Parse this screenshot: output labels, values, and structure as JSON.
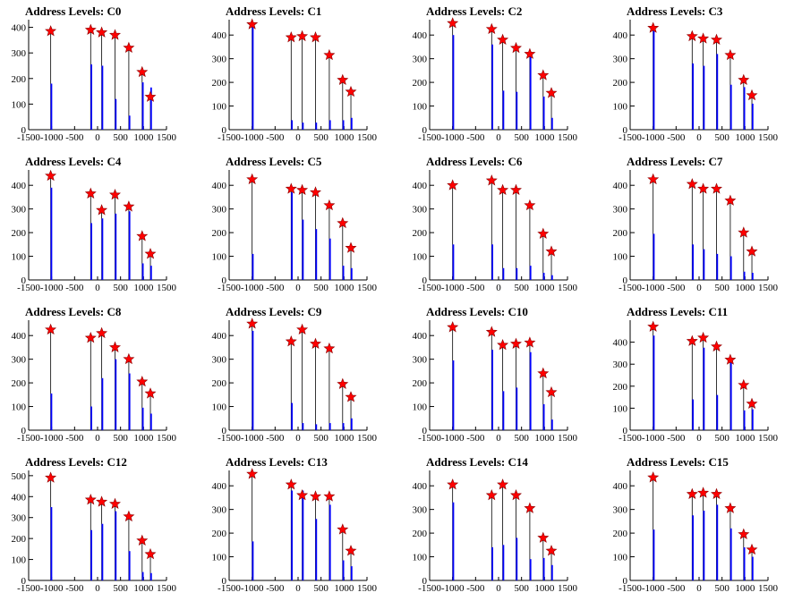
{
  "figure": {
    "background": "#ffffff",
    "colors": {
      "bar": "#0000ff",
      "spike": "#000000",
      "marker_fill": "#ff0000",
      "marker_stroke": "#8b0000",
      "axis": "#000000"
    }
  },
  "chart_data": [
    {
      "type": "bar",
      "title": "Address Levels: C0",
      "xlabel": "",
      "ylabel": "",
      "xlim": [
        -1500,
        1500
      ],
      "ylim": [
        0,
        430
      ],
      "xticks": [
        -1500,
        -1000,
        -500,
        0,
        500,
        1000,
        1500
      ],
      "yticks": [
        0,
        100,
        200,
        300,
        400
      ],
      "peaks": {
        "x": [
          -1020,
          -150,
          90,
          380,
          680,
          970,
          1150
        ],
        "y": [
          385,
          390,
          380,
          370,
          320,
          225,
          128
        ]
      },
      "bars": {
        "x": [
          -1020,
          -150,
          90,
          380,
          680,
          970,
          1150
        ],
        "y": [
          180,
          255,
          250,
          120,
          55,
          185,
          165
        ]
      }
    },
    {
      "type": "bar",
      "title": "Address Levels: C1",
      "xlabel": "",
      "ylabel": "",
      "xlim": [
        -1500,
        1500
      ],
      "ylim": [
        0,
        465
      ],
      "xticks": [
        -1500,
        -1000,
        -500,
        0,
        500,
        1000,
        1500
      ],
      "yticks": [
        0,
        100,
        200,
        300,
        400
      ],
      "peaks": {
        "x": [
          -1000,
          -150,
          90,
          380,
          680,
          970,
          1150
        ],
        "y": [
          445,
          390,
          395,
          390,
          315,
          210,
          160
        ]
      },
      "bars": {
        "x": [
          -1000,
          -150,
          90,
          380,
          680,
          970,
          1150
        ],
        "y": [
          445,
          40,
          30,
          30,
          40,
          40,
          50
        ]
      }
    },
    {
      "type": "bar",
      "title": "Address Levels: C2",
      "xlabel": "",
      "ylabel": "",
      "xlim": [
        -1500,
        1500
      ],
      "ylim": [
        0,
        465
      ],
      "xticks": [
        -1500,
        -1000,
        -500,
        0,
        500,
        1000,
        1500
      ],
      "yticks": [
        0,
        100,
        200,
        300,
        400
      ],
      "peaks": {
        "x": [
          -1000,
          -150,
          90,
          380,
          680,
          970,
          1150
        ],
        "y": [
          450,
          425,
          380,
          345,
          320,
          230,
          155
        ]
      },
      "bars": {
        "x": [
          -1000,
          -150,
          90,
          380,
          680,
          970,
          1150
        ],
        "y": [
          400,
          360,
          165,
          160,
          330,
          140,
          50
        ]
      }
    },
    {
      "type": "bar",
      "title": "Address Levels: C3",
      "xlabel": "",
      "ylabel": "",
      "xlim": [
        -1500,
        1500
      ],
      "ylim": [
        0,
        465
      ],
      "xticks": [
        -1500,
        -1000,
        -500,
        0,
        500,
        1000,
        1500
      ],
      "yticks": [
        0,
        100,
        200,
        300,
        400
      ],
      "peaks": {
        "x": [
          -1000,
          -150,
          90,
          380,
          680,
          970,
          1150
        ],
        "y": [
          430,
          395,
          385,
          380,
          315,
          210,
          145
        ]
      },
      "bars": {
        "x": [
          -1000,
          -150,
          90,
          380,
          680,
          970,
          1150
        ],
        "y": [
          420,
          280,
          270,
          320,
          190,
          180,
          110
        ]
      }
    },
    {
      "type": "bar",
      "title": "Address Levels: C4",
      "xlabel": "",
      "ylabel": "",
      "xlim": [
        -1500,
        1500
      ],
      "ylim": [
        0,
        465
      ],
      "xticks": [
        -1500,
        -1000,
        -500,
        0,
        500,
        1000,
        1500
      ],
      "yticks": [
        0,
        100,
        200,
        300,
        400
      ],
      "peaks": {
        "x": [
          -1020,
          -150,
          90,
          380,
          680,
          970,
          1150
        ],
        "y": [
          440,
          365,
          295,
          360,
          310,
          185,
          110
        ]
      },
      "bars": {
        "x": [
          -1020,
          -150,
          90,
          380,
          680,
          970,
          1150
        ],
        "y": [
          390,
          240,
          260,
          280,
          290,
          70,
          60
        ]
      }
    },
    {
      "type": "bar",
      "title": "Address Levels: C5",
      "xlabel": "",
      "ylabel": "",
      "xlim": [
        -1500,
        1500
      ],
      "ylim": [
        0,
        465
      ],
      "xticks": [
        -1500,
        -1000,
        -500,
        0,
        500,
        1000,
        1500
      ],
      "yticks": [
        0,
        100,
        200,
        300,
        400
      ],
      "peaks": {
        "x": [
          -1000,
          -150,
          90,
          380,
          680,
          970,
          1150
        ],
        "y": [
          425,
          385,
          380,
          370,
          315,
          240,
          135
        ]
      },
      "bars": {
        "x": [
          -1000,
          -150,
          90,
          380,
          680,
          970,
          1150
        ],
        "y": [
          110,
          370,
          255,
          215,
          175,
          60,
          50
        ]
      }
    },
    {
      "type": "bar",
      "title": "Address Levels: C6",
      "xlabel": "",
      "ylabel": "",
      "xlim": [
        -1500,
        1500
      ],
      "ylim": [
        0,
        465
      ],
      "xticks": [
        -1500,
        -1000,
        -500,
        0,
        500,
        1000,
        1500
      ],
      "yticks": [
        0,
        100,
        200,
        300,
        400
      ],
      "peaks": {
        "x": [
          -1000,
          -150,
          90,
          380,
          680,
          970,
          1150
        ],
        "y": [
          400,
          420,
          380,
          380,
          315,
          195,
          120
        ]
      },
      "bars": {
        "x": [
          -1000,
          -150,
          90,
          380,
          680,
          970,
          1150
        ],
        "y": [
          150,
          150,
          50,
          50,
          60,
          30,
          20
        ]
      }
    },
    {
      "type": "bar",
      "title": "Address Levels: C7",
      "xlabel": "",
      "ylabel": "",
      "xlim": [
        -1500,
        1500
      ],
      "ylim": [
        0,
        465
      ],
      "xticks": [
        -1500,
        -1000,
        -500,
        0,
        500,
        1000,
        1500
      ],
      "yticks": [
        0,
        100,
        200,
        300,
        400
      ],
      "peaks": {
        "x": [
          -1000,
          -150,
          90,
          380,
          680,
          970,
          1150
        ],
        "y": [
          425,
          405,
          385,
          385,
          335,
          200,
          120
        ]
      },
      "bars": {
        "x": [
          -1000,
          -150,
          90,
          380,
          680,
          970,
          1150
        ],
        "y": [
          195,
          150,
          130,
          110,
          100,
          35,
          30
        ]
      }
    },
    {
      "type": "bar",
      "title": "Address Levels: C8",
      "xlabel": "",
      "ylabel": "",
      "xlim": [
        -1500,
        1500
      ],
      "ylim": [
        0,
        465
      ],
      "xticks": [
        -1500,
        -1000,
        -500,
        0,
        500,
        1000,
        1500
      ],
      "yticks": [
        0,
        100,
        200,
        300,
        400
      ],
      "peaks": {
        "x": [
          -1020,
          -150,
          90,
          380,
          680,
          970,
          1150
        ],
        "y": [
          425,
          390,
          410,
          350,
          300,
          205,
          155
        ]
      },
      "bars": {
        "x": [
          -1020,
          -150,
          90,
          380,
          680,
          970,
          1150
        ],
        "y": [
          155,
          100,
          220,
          300,
          240,
          95,
          70
        ]
      }
    },
    {
      "type": "bar",
      "title": "Address Levels: C9",
      "xlabel": "",
      "ylabel": "",
      "xlim": [
        -1500,
        1500
      ],
      "ylim": [
        0,
        465
      ],
      "xticks": [
        -1500,
        -1000,
        -500,
        0,
        500,
        1000,
        1500
      ],
      "yticks": [
        0,
        100,
        200,
        300,
        400
      ],
      "peaks": {
        "x": [
          -1000,
          -150,
          90,
          380,
          680,
          970,
          1150
        ],
        "y": [
          450,
          375,
          425,
          365,
          345,
          195,
          140
        ]
      },
      "bars": {
        "x": [
          -1000,
          -150,
          90,
          380,
          680,
          970,
          1150
        ],
        "y": [
          420,
          115,
          30,
          25,
          30,
          30,
          50
        ]
      }
    },
    {
      "type": "bar",
      "title": "Address Levels: C10",
      "xlabel": "",
      "ylabel": "",
      "xlim": [
        -1500,
        1500
      ],
      "ylim": [
        0,
        465
      ],
      "xticks": [
        -1500,
        -1000,
        -500,
        0,
        500,
        1000,
        1500
      ],
      "yticks": [
        0,
        100,
        200,
        300,
        400
      ],
      "peaks": {
        "x": [
          -1000,
          -150,
          90,
          380,
          680,
          970,
          1150
        ],
        "y": [
          435,
          415,
          360,
          365,
          370,
          240,
          160
        ]
      },
      "bars": {
        "x": [
          -1000,
          -150,
          90,
          380,
          680,
          970,
          1150
        ],
        "y": [
          295,
          340,
          165,
          180,
          330,
          110,
          45
        ]
      }
    },
    {
      "type": "bar",
      "title": "Address Levels: C11",
      "xlabel": "",
      "ylabel": "",
      "xlim": [
        -1500,
        1500
      ],
      "ylim": [
        0,
        500
      ],
      "xticks": [
        -1500,
        -1000,
        -500,
        0,
        500,
        1000,
        1500
      ],
      "yticks": [
        0,
        100,
        200,
        300,
        400
      ],
      "peaks": {
        "x": [
          -1000,
          -150,
          90,
          380,
          680,
          970,
          1150
        ],
        "y": [
          470,
          405,
          420,
          380,
          320,
          205,
          120
        ]
      },
      "bars": {
        "x": [
          -1000,
          -150,
          90,
          380,
          680,
          970,
          1150
        ],
        "y": [
          430,
          140,
          375,
          160,
          310,
          90,
          95
        ]
      }
    },
    {
      "type": "bar",
      "title": "Address Levels: C12",
      "xlabel": "",
      "ylabel": "",
      "xlim": [
        -1500,
        1500
      ],
      "ylim": [
        0,
        525
      ],
      "xticks": [
        -1500,
        -1000,
        -500,
        0,
        500,
        1000,
        1500
      ],
      "yticks": [
        0,
        100,
        200,
        300,
        400,
        500
      ],
      "peaks": {
        "x": [
          -1020,
          -150,
          90,
          380,
          680,
          970,
          1150
        ],
        "y": [
          490,
          385,
          375,
          365,
          305,
          190,
          125
        ]
      },
      "bars": {
        "x": [
          -1020,
          -150,
          90,
          380,
          680,
          970,
          1150
        ],
        "y": [
          350,
          240,
          270,
          330,
          140,
          40,
          35
        ]
      }
    },
    {
      "type": "bar",
      "title": "Address Levels: C13",
      "xlabel": "",
      "ylabel": "",
      "xlim": [
        -1500,
        1500
      ],
      "ylim": [
        0,
        465
      ],
      "xticks": [
        -1500,
        -1000,
        -500,
        0,
        500,
        1000,
        1500
      ],
      "yticks": [
        0,
        100,
        200,
        300,
        400
      ],
      "peaks": {
        "x": [
          -1000,
          -150,
          90,
          380,
          680,
          970,
          1150
        ],
        "y": [
          450,
          405,
          360,
          355,
          355,
          215,
          125
        ]
      },
      "bars": {
        "x": [
          -1000,
          -150,
          90,
          380,
          680,
          970,
          1150
        ],
        "y": [
          165,
          380,
          380,
          260,
          320,
          85,
          60
        ]
      }
    },
    {
      "type": "bar",
      "title": "Address Levels: C14",
      "xlabel": "",
      "ylabel": "",
      "xlim": [
        -1500,
        1500
      ],
      "ylim": [
        0,
        465
      ],
      "xticks": [
        -1500,
        -1000,
        -500,
        0,
        500,
        1000,
        1500
      ],
      "yticks": [
        0,
        100,
        200,
        300,
        400
      ],
      "peaks": {
        "x": [
          -1000,
          -150,
          90,
          380,
          680,
          970,
          1150
        ],
        "y": [
          405,
          360,
          405,
          360,
          305,
          180,
          125
        ]
      },
      "bars": {
        "x": [
          -1000,
          -150,
          90,
          380,
          680,
          970,
          1150
        ],
        "y": [
          330,
          140,
          150,
          180,
          90,
          95,
          65
        ]
      }
    },
    {
      "type": "bar",
      "title": "Address Levels: C15",
      "xlabel": "",
      "ylabel": "",
      "xlim": [
        -1500,
        1500
      ],
      "ylim": [
        0,
        465
      ],
      "xticks": [
        -1500,
        -1000,
        -500,
        0,
        500,
        1000,
        1500
      ],
      "yticks": [
        0,
        100,
        200,
        300,
        400
      ],
      "peaks": {
        "x": [
          -1000,
          -150,
          90,
          380,
          680,
          970,
          1150
        ],
        "y": [
          435,
          365,
          370,
          365,
          305,
          195,
          130
        ]
      },
      "bars": {
        "x": [
          -1000,
          -150,
          90,
          380,
          680,
          970,
          1150
        ],
        "y": [
          215,
          275,
          295,
          320,
          220,
          140,
          100
        ]
      }
    }
  ]
}
